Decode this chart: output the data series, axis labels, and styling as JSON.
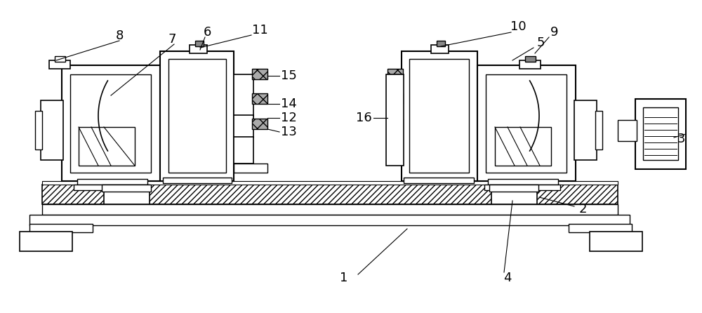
{
  "background_color": "#ffffff",
  "line_color": "#000000",
  "label_fontsize": 13
}
